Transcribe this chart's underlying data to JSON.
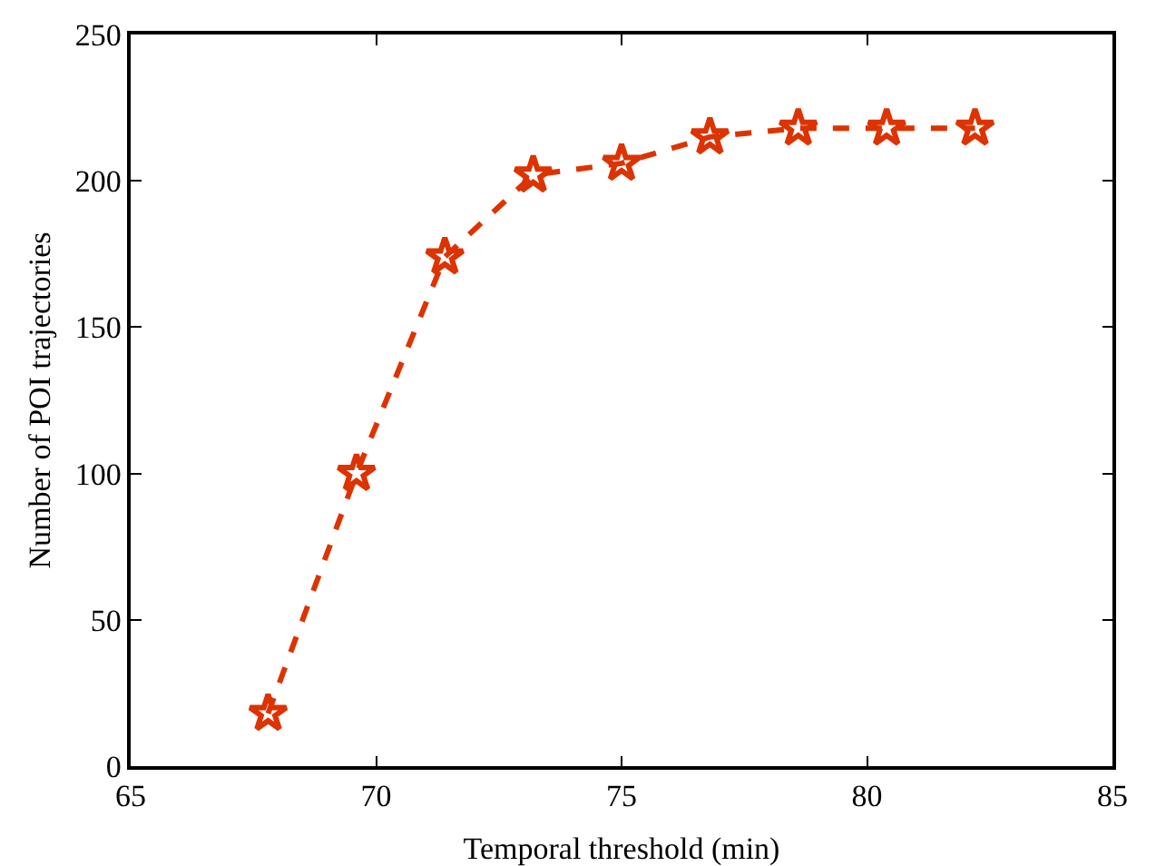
{
  "chart_data": {
    "type": "line",
    "xlabel": "Temporal threshold (min)",
    "ylabel": "Number of POI trajectories",
    "x": [
      67.8,
      69.6,
      71.4,
      73.2,
      75,
      76.8,
      78.6,
      80.4,
      82.2
    ],
    "series": [
      {
        "color": "#dd3300",
        "values": [
          18,
          100,
          174,
          202,
          206,
          215,
          218,
          218,
          218
        ]
      }
    ],
    "xlim": [
      65,
      85
    ],
    "xticks": [
      65,
      70,
      75,
      80,
      85
    ],
    "ylim": [
      0,
      250
    ],
    "yticks": [
      0,
      50,
      100,
      150,
      200,
      250
    ],
    "grid": false,
    "marker": "star",
    "line_style": "dashed"
  }
}
